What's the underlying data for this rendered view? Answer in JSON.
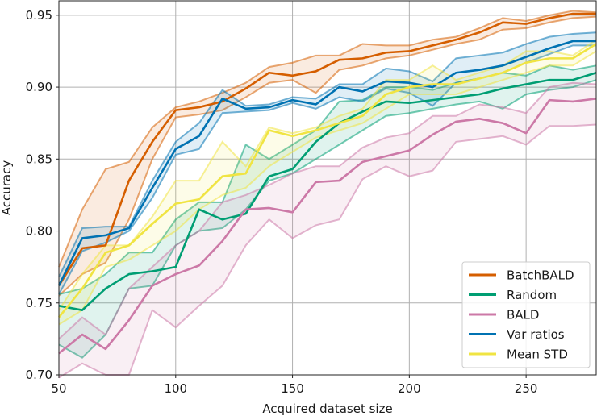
{
  "chart_data": {
    "type": "line",
    "xlabel": "Acquired dataset size",
    "ylabel": "Accuracy",
    "xlim": [
      50,
      280
    ],
    "ylim": [
      0.7,
      0.96
    ],
    "xticks": [
      50,
      100,
      150,
      200,
      250
    ],
    "yticks": [
      0.7,
      0.75,
      0.8,
      0.85,
      0.9,
      0.95
    ],
    "xtick_labels": [
      "50",
      "100",
      "150",
      "200",
      "250"
    ],
    "ytick_labels": [
      "0.70",
      "0.75",
      "0.80",
      "0.85",
      "0.90",
      "0.95"
    ],
    "grid": true,
    "legend_position": "lower right",
    "x": [
      50,
      60,
      70,
      80,
      90,
      100,
      110,
      120,
      130,
      140,
      150,
      160,
      170,
      180,
      190,
      200,
      210,
      220,
      230,
      240,
      250,
      260,
      270,
      280
    ],
    "series": [
      {
        "name": "BatchBALD",
        "color": "#d55e00",
        "values": [
          0.762,
          0.788,
          0.79,
          0.835,
          0.862,
          0.884,
          0.886,
          0.89,
          0.899,
          0.91,
          0.908,
          0.911,
          0.919,
          0.92,
          0.924,
          0.925,
          0.929,
          0.933,
          0.938,
          0.945,
          0.944,
          0.948,
          0.951,
          0.951
        ],
        "lower": [
          0.755,
          0.77,
          0.778,
          0.808,
          0.85,
          0.879,
          0.881,
          0.884,
          0.893,
          0.903,
          0.905,
          0.896,
          0.912,
          0.915,
          0.92,
          0.922,
          0.926,
          0.93,
          0.933,
          0.94,
          0.941,
          0.945,
          0.948,
          0.949
        ],
        "upper": [
          0.775,
          0.815,
          0.843,
          0.848,
          0.872,
          0.886,
          0.89,
          0.896,
          0.903,
          0.914,
          0.917,
          0.922,
          0.922,
          0.93,
          0.929,
          0.929,
          0.933,
          0.935,
          0.941,
          0.948,
          0.946,
          0.95,
          0.953,
          0.952
        ]
      },
      {
        "name": "Random",
        "color": "#009e73",
        "values": [
          0.748,
          0.745,
          0.76,
          0.77,
          0.772,
          0.775,
          0.815,
          0.808,
          0.812,
          0.838,
          0.843,
          0.862,
          0.875,
          0.883,
          0.89,
          0.889,
          0.891,
          0.893,
          0.895,
          0.899,
          0.902,
          0.905,
          0.905,
          0.91
        ],
        "lower": [
          0.721,
          0.712,
          0.728,
          0.76,
          0.762,
          0.79,
          0.8,
          0.802,
          0.815,
          0.835,
          0.84,
          0.85,
          0.86,
          0.87,
          0.88,
          0.882,
          0.885,
          0.888,
          0.89,
          0.885,
          0.895,
          0.898,
          0.9,
          0.905
        ],
        "upper": [
          0.756,
          0.76,
          0.77,
          0.785,
          0.785,
          0.808,
          0.82,
          0.82,
          0.86,
          0.85,
          0.86,
          0.87,
          0.89,
          0.891,
          0.9,
          0.9,
          0.898,
          0.903,
          0.906,
          0.91,
          0.908,
          0.915,
          0.912,
          0.915
        ]
      },
      {
        "name": "BALD",
        "color": "#cc79a7",
        "values": [
          0.715,
          0.728,
          0.718,
          0.738,
          0.762,
          0.77,
          0.776,
          0.793,
          0.815,
          0.816,
          0.813,
          0.834,
          0.835,
          0.848,
          0.852,
          0.856,
          0.867,
          0.876,
          0.878,
          0.875,
          0.868,
          0.891,
          0.89,
          0.892
        ],
        "lower": [
          0.698,
          0.708,
          0.7,
          0.7,
          0.745,
          0.733,
          0.748,
          0.762,
          0.79,
          0.808,
          0.795,
          0.804,
          0.808,
          0.836,
          0.845,
          0.838,
          0.842,
          0.862,
          0.864,
          0.866,
          0.86,
          0.873,
          0.873,
          0.874
        ],
        "upper": [
          0.725,
          0.74,
          0.728,
          0.76,
          0.775,
          0.79,
          0.8,
          0.82,
          0.825,
          0.832,
          0.84,
          0.845,
          0.845,
          0.858,
          0.865,
          0.868,
          0.88,
          0.88,
          0.888,
          0.886,
          0.882,
          0.9,
          0.903,
          0.902
        ]
      },
      {
        "name": "Var ratios",
        "color": "#0072b2",
        "values": [
          0.762,
          0.795,
          0.797,
          0.802,
          0.83,
          0.857,
          0.866,
          0.892,
          0.885,
          0.886,
          0.891,
          0.888,
          0.9,
          0.897,
          0.904,
          0.903,
          0.9,
          0.91,
          0.912,
          0.915,
          0.921,
          0.927,
          0.932,
          0.932
        ],
        "lower": [
          0.756,
          0.786,
          0.792,
          0.8,
          0.823,
          0.853,
          0.857,
          0.882,
          0.883,
          0.884,
          0.889,
          0.885,
          0.893,
          0.89,
          0.899,
          0.896,
          0.887,
          0.903,
          0.906,
          0.91,
          0.917,
          0.923,
          0.929,
          0.929
        ],
        "upper": [
          0.768,
          0.802,
          0.803,
          0.803,
          0.835,
          0.862,
          0.875,
          0.898,
          0.887,
          0.888,
          0.893,
          0.892,
          0.902,
          0.902,
          0.913,
          0.911,
          0.904,
          0.92,
          0.922,
          0.924,
          0.93,
          0.935,
          0.937,
          0.938
        ]
      },
      {
        "name": "Mean STD",
        "color": "#f0e442",
        "values": [
          0.74,
          0.76,
          0.785,
          0.79,
          0.805,
          0.819,
          0.822,
          0.838,
          0.84,
          0.87,
          0.866,
          0.87,
          0.875,
          0.88,
          0.895,
          0.9,
          0.902,
          0.902,
          0.906,
          0.91,
          0.917,
          0.92,
          0.92,
          0.93
        ],
        "lower": [
          0.735,
          0.745,
          0.775,
          0.78,
          0.79,
          0.8,
          0.815,
          0.825,
          0.83,
          0.845,
          0.855,
          0.865,
          0.87,
          0.875,
          0.885,
          0.895,
          0.895,
          0.895,
          0.9,
          0.905,
          0.91,
          0.915,
          0.915,
          0.925
        ],
        "upper": [
          0.745,
          0.77,
          0.79,
          0.79,
          0.81,
          0.835,
          0.835,
          0.862,
          0.845,
          0.872,
          0.868,
          0.872,
          0.88,
          0.885,
          0.905,
          0.905,
          0.915,
          0.905,
          0.91,
          0.915,
          0.925,
          0.925,
          0.922,
          0.933
        ]
      }
    ]
  }
}
